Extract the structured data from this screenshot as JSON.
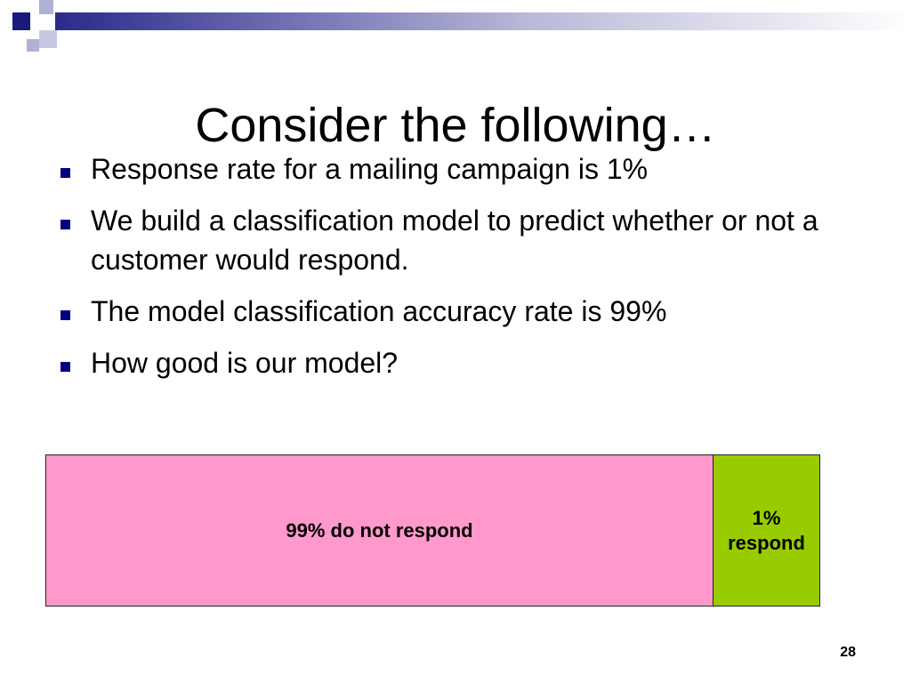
{
  "slide": {
    "title": "Consider the following…",
    "bullets": [
      "Response rate for a mailing campaign is 1%",
      "We build a classification model to predict whether or not a customer would respond.",
      "The model classification accuracy rate is 99%",
      "How good is our model?"
    ],
    "page_number": "28"
  },
  "proportion_bar": {
    "segments": [
      {
        "label": "99% do not respond",
        "share": 99,
        "color": "#ff99cc"
      },
      {
        "label": "1% respond",
        "share": 1,
        "color": "#99cc00"
      }
    ]
  },
  "theme": {
    "accent": "#000080",
    "decor_square_dark": "#1a1a7a",
    "decor_square_light": "#b0b0d8"
  }
}
